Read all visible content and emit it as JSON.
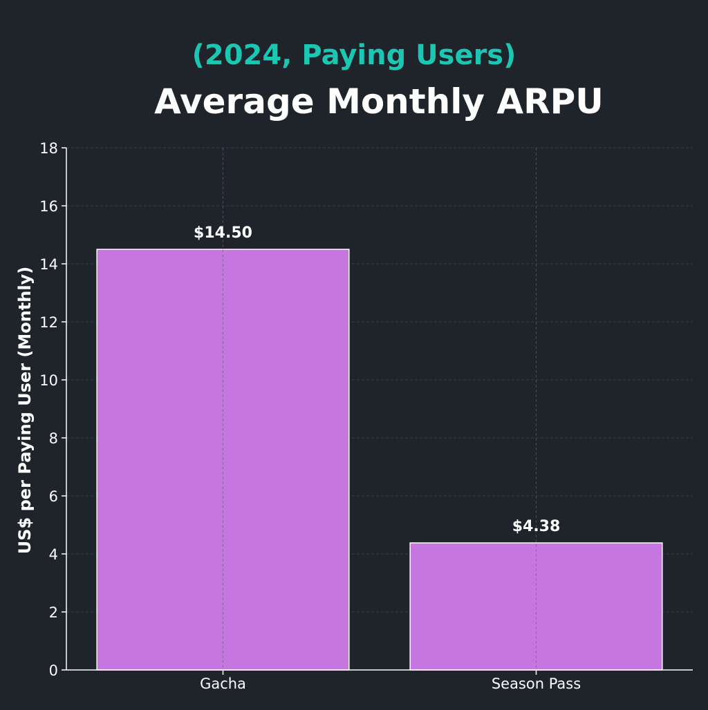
{
  "chart_data": {
    "type": "bar",
    "title": "Average Monthly ARPU",
    "subtitle": "(2024, Paying Users)",
    "xlabel": "",
    "ylabel": "US$ per Paying User (Monthly)",
    "categories": [
      "Gacha",
      "Season Pass"
    ],
    "values": [
      14.5,
      4.38
    ],
    "data_labels": [
      "$14.50",
      "$4.38"
    ],
    "ylim": [
      0,
      18
    ],
    "yticks": [
      0,
      2,
      4,
      6,
      8,
      10,
      12,
      14,
      16,
      18
    ],
    "grid": true,
    "legend": "none"
  },
  "colors": {
    "background": "#1f232a",
    "bar_fill": "#c576df",
    "bar_edge": "#ffffff",
    "subtitle": "#1cc6b2",
    "title": "#ffffff",
    "text": "#ffffff",
    "grid": "#3a3f48"
  }
}
